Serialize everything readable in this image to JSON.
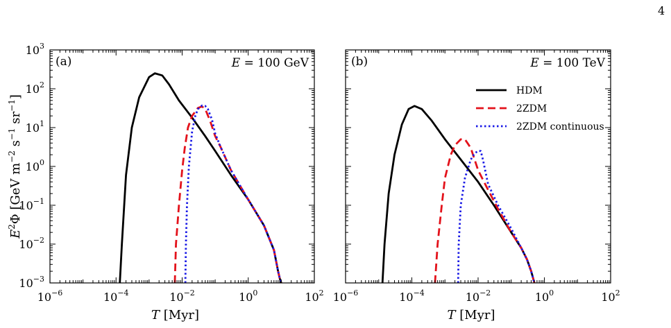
{
  "page_number": "4",
  "y_axis_label": "E²Φ [GeV m⁻² s⁻¹ sr⁻¹]",
  "chart_data": [
    {
      "type": "line",
      "panel_label": "(a)",
      "energy_label": "E = 100 GeV",
      "xlabel": "T [Myr]",
      "ylabel": "E²Φ [GeV m⁻² s⁻¹ sr⁻¹]",
      "x_scale": "log",
      "y_scale": "log",
      "xlim": [
        1e-06,
        100
      ],
      "ylim": [
        0.001,
        1000
      ],
      "x_ticks": [
        1e-06,
        0.0001,
        0.01,
        1,
        100
      ],
      "y_ticks": [
        0.001,
        0.01,
        0.1,
        1,
        10,
        100,
        1000
      ],
      "x_tick_labels": [
        [
          "10",
          "−6"
        ],
        [
          "10",
          "−4"
        ],
        [
          "10",
          "−2"
        ],
        [
          "10",
          "0"
        ],
        [
          "10",
          "2"
        ]
      ],
      "y_tick_labels": [
        [
          "10",
          "−3"
        ],
        [
          "10",
          "−2"
        ],
        [
          "10",
          "−1"
        ],
        [
          "10",
          "0"
        ],
        [
          "10",
          "1"
        ],
        [
          "10",
          "2"
        ],
        [
          "10",
          "3"
        ]
      ],
      "series": [
        {
          "name": "HDM",
          "color": "#000000",
          "style": "solid",
          "x": [
            0.00013,
            0.00015,
            0.0002,
            0.0003,
            0.0005,
            0.001,
            0.0015,
            0.0025,
            0.004,
            0.008,
            0.02,
            0.05,
            0.1,
            0.3,
            1,
            3,
            6,
            8,
            9,
            10
          ],
          "y": [
            0.001,
            0.01,
            0.6,
            10,
            60,
            200,
            250,
            220,
            130,
            50,
            18,
            6,
            2.5,
            0.6,
            0.14,
            0.03,
            0.007,
            0.002,
            0.0013,
            0.001
          ]
        },
        {
          "name": "2ZDM",
          "color": "#e3121b",
          "style": "dashed",
          "x": [
            0.006,
            0.0065,
            0.008,
            0.01,
            0.012,
            0.015,
            0.02,
            0.03,
            0.04,
            0.05,
            0.07,
            0.1,
            0.15,
            0.3,
            1,
            3,
            6,
            8,
            9,
            10
          ],
          "y": [
            0.001,
            0.01,
            0.1,
            0.8,
            3,
            10,
            20,
            32,
            35,
            30,
            15,
            6,
            3,
            0.8,
            0.14,
            0.03,
            0.007,
            0.002,
            0.0013,
            0.001
          ]
        },
        {
          "name": "2ZDM continuous",
          "color": "#1a1ae6",
          "style": "dotted",
          "x": [
            0.0125,
            0.013,
            0.014,
            0.016,
            0.02,
            0.025,
            0.03,
            0.04,
            0.05,
            0.06,
            0.08,
            0.1,
            0.15,
            0.3,
            1,
            3,
            6,
            8,
            9,
            10
          ],
          "y": [
            0.001,
            0.01,
            0.1,
            1,
            8,
            20,
            30,
            37,
            36,
            30,
            16,
            7,
            3,
            0.8,
            0.14,
            0.03,
            0.007,
            0.002,
            0.0013,
            0.001
          ]
        }
      ]
    },
    {
      "type": "line",
      "panel_label": "(b)",
      "energy_label": "E = 100 TeV",
      "xlabel": "T [Myr]",
      "ylabel": "",
      "x_scale": "log",
      "y_scale": "log",
      "xlim": [
        1e-06,
        100
      ],
      "ylim": [
        0.001,
        1000
      ],
      "x_ticks": [
        1e-06,
        0.0001,
        0.01,
        1,
        100
      ],
      "y_ticks": [
        0.001,
        0.01,
        0.1,
        1,
        10,
        100,
        1000
      ],
      "x_tick_labels": [
        [
          "10",
          "−6"
        ],
        [
          "10",
          "−4"
        ],
        [
          "10",
          "−2"
        ],
        [
          "10",
          "0"
        ],
        [
          "10",
          "2"
        ]
      ],
      "y_tick_labels": [],
      "legend_position": "upper-right",
      "series": [
        {
          "name": "HDM",
          "color": "#000000",
          "style": "solid",
          "x": [
            1.3e-05,
            1.5e-05,
            2e-05,
            3e-05,
            5e-05,
            8e-05,
            0.00012,
            0.0002,
            0.0004,
            0.001,
            0.003,
            0.01,
            0.03,
            0.1,
            0.2,
            0.3,
            0.4,
            0.5
          ],
          "y": [
            0.001,
            0.01,
            0.2,
            2,
            12,
            30,
            36,
            30,
            15,
            5,
            1.5,
            0.4,
            0.1,
            0.02,
            0.008,
            0.004,
            0.002,
            0.001
          ]
        },
        {
          "name": "2ZDM",
          "color": "#e3121b",
          "style": "dashed",
          "x": [
            0.0005,
            0.0006,
            0.0008,
            0.001,
            0.0015,
            0.002,
            0.003,
            0.004,
            0.006,
            0.01,
            0.02,
            0.04,
            0.1,
            0.2,
            0.3,
            0.4,
            0.5
          ],
          "y": [
            0.001,
            0.01,
            0.1,
            0.5,
            2,
            3.5,
            5,
            5,
            3,
            0.8,
            0.25,
            0.08,
            0.02,
            0.008,
            0.004,
            0.002,
            0.001
          ]
        },
        {
          "name": "2ZDM continuous",
          "color": "#1a1ae6",
          "style": "dotted",
          "x": [
            0.0025,
            0.0026,
            0.003,
            0.004,
            0.006,
            0.008,
            0.01,
            0.012,
            0.014,
            0.02,
            0.04,
            0.1,
            0.2,
            0.3,
            0.4,
            0.5
          ],
          "y": [
            0.001,
            0.01,
            0.1,
            0.5,
            1.5,
            2.2,
            2.5,
            2.5,
            1.5,
            0.35,
            0.1,
            0.025,
            0.008,
            0.004,
            0.002,
            0.001
          ]
        }
      ]
    }
  ]
}
